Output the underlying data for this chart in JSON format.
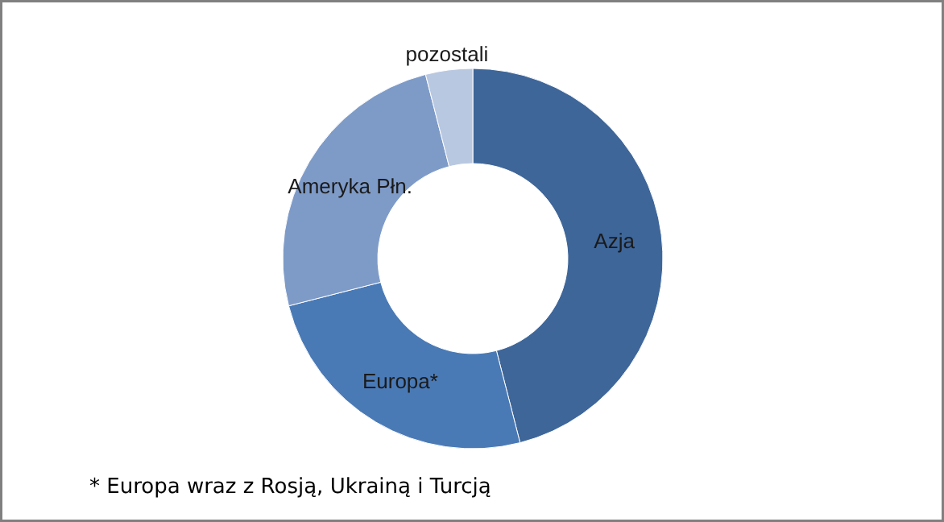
{
  "chart_data": {
    "type": "donut",
    "categories": [
      "Azja",
      "Europa*",
      "Ameryka Płn.",
      "pozostali"
    ],
    "values": [
      46,
      25,
      25,
      4
    ],
    "colors": [
      "#3e6699",
      "#4a7ab6",
      "#7e9bc8",
      "#b9c8e1"
    ],
    "annotations": [
      "* Europa wraz z Rosją, Ukrainą i Turcją"
    ]
  }
}
